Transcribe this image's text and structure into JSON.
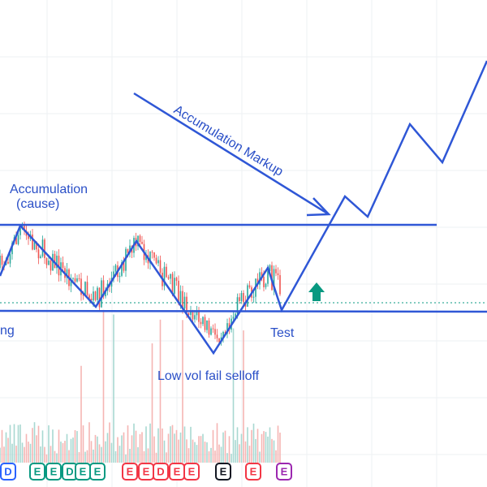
{
  "annotations": {
    "accumulation_line1": "Accumulation",
    "accumulation_line2": "(cause)",
    "left_cut": "ng",
    "test": "Test",
    "selloff": "Low vol fail selloff",
    "markup": "Accumulation Markup"
  },
  "badges": [
    {
      "label": "D",
      "color": "#2962ff"
    },
    {
      "label": "E",
      "color": "#089981"
    },
    {
      "label": "E",
      "color": "#089981"
    },
    {
      "label": "D",
      "color": "#089981"
    },
    {
      "label": "E",
      "color": "#089981"
    },
    {
      "label": "E",
      "color": "#089981"
    },
    {
      "label": "E",
      "color": "#f23645"
    },
    {
      "label": "E",
      "color": "#f23645"
    },
    {
      "label": "D",
      "color": "#f23645"
    },
    {
      "label": "E",
      "color": "#f23645"
    },
    {
      "label": "E",
      "color": "#f23645"
    },
    {
      "label": "E",
      "color": "#131722"
    },
    {
      "label": "E",
      "color": "#f23645"
    },
    {
      "label": "E",
      "color": "#9c27b0"
    }
  ]
}
